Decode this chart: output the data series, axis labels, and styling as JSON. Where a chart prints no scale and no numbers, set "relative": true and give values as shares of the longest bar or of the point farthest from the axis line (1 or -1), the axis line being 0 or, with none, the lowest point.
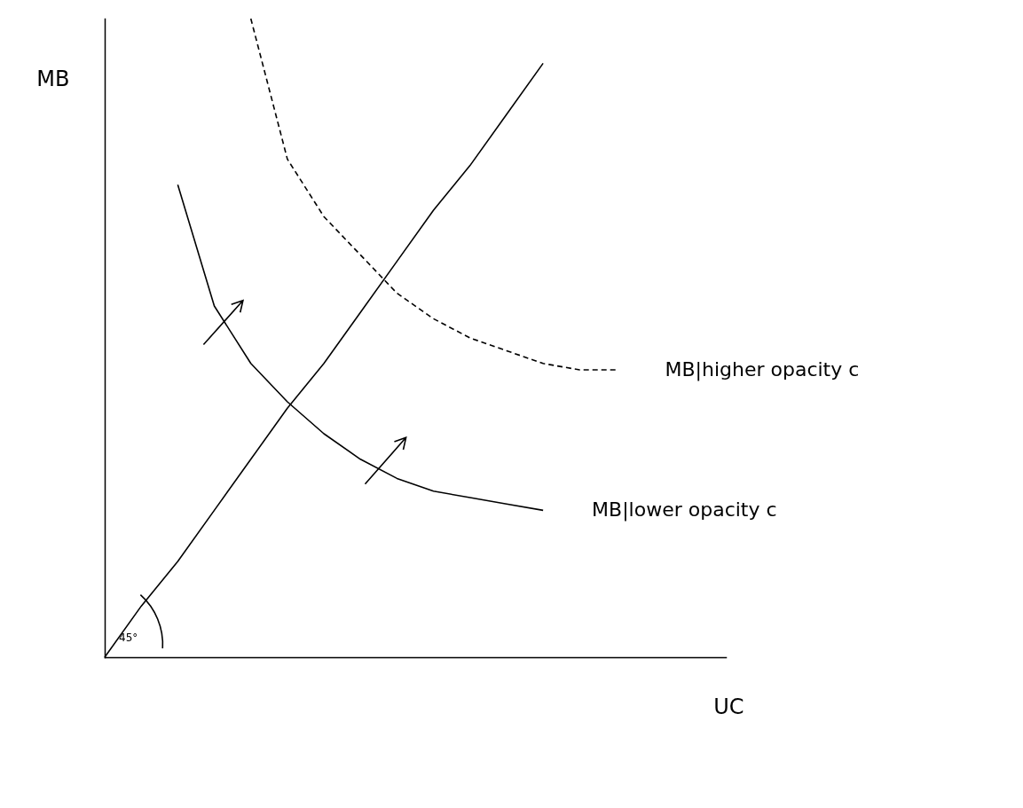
{
  "chart_data": {
    "type": "line",
    "relative": true,
    "xlabel": "UC",
    "ylabel": "MB",
    "tick_labels": false,
    "categories": [
      null,
      null,
      null,
      null,
      null,
      null,
      null,
      null,
      null,
      null,
      null,
      null,
      null,
      null,
      null,
      null,
      null,
      null
    ],
    "series": [
      {
        "color": "#000000",
        "line_style": "solid",
        "values": [
          0,
          0.08,
          0.15,
          0.23,
          0.31,
          0.39,
          0.46,
          0.54,
          0.62,
          0.7,
          0.77,
          0.85,
          0.93,
          null,
          null,
          null,
          null,
          null
        ]
      },
      {
        "name": "MB|lower opacity c",
        "color": "#000000",
        "line_style": "solid",
        "values": [
          null,
          null,
          0.74,
          0.55,
          0.46,
          0.4,
          0.35,
          0.31,
          0.28,
          0.26,
          0.25,
          0.24,
          0.23,
          null,
          null,
          null,
          null,
          null
        ]
      },
      {
        "name": "MB|higher opacity c",
        "color": "#000000",
        "line_style": "dashed",
        "values": [
          null,
          null,
          null,
          null,
          1.0,
          0.78,
          0.69,
          0.63,
          0.57,
          0.53,
          0.5,
          0.48,
          0.46,
          0.45,
          0.45,
          null,
          null,
          null
        ]
      }
    ],
    "annotations": [
      "45°"
    ]
  }
}
